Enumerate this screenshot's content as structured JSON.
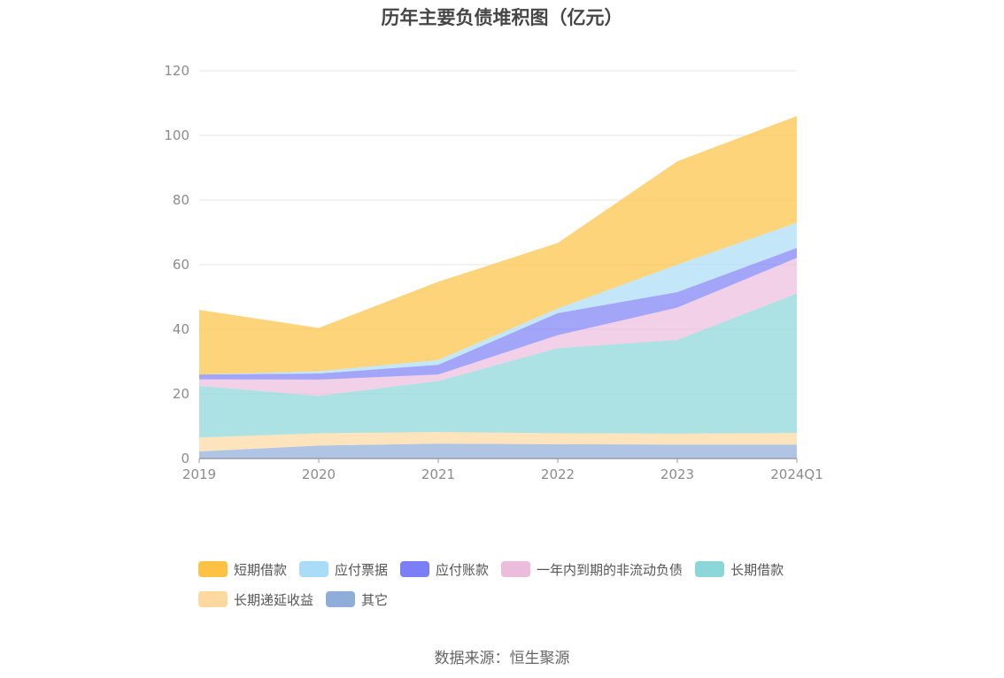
{
  "chart_data": {
    "type": "area",
    "stacked": true,
    "title": "历年主要负债堆积图（亿元）",
    "categories": [
      "2019",
      "2020",
      "2021",
      "2022",
      "2023",
      "2024Q1"
    ],
    "ylim": [
      0,
      120
    ],
    "yticks": [
      "0",
      "20",
      "40",
      "60",
      "80",
      "100",
      "120"
    ],
    "grid": true,
    "legend_position": "bottom",
    "series": [
      {
        "name": "其它",
        "color": "#8fadd9",
        "values": [
          2.2,
          4.0,
          4.6,
          4.4,
          4.3,
          4.3
        ]
      },
      {
        "name": "长期递延收益",
        "color": "#fdd9a0",
        "values": [
          4.3,
          3.8,
          3.6,
          3.4,
          3.4,
          3.6
        ]
      },
      {
        "name": "长期借款",
        "color": "#8ad6d8",
        "values": [
          16.0,
          11.6,
          15.8,
          26.4,
          29.0,
          43.2
        ]
      },
      {
        "name": "一年内到期的非流动负债",
        "color": "#ecbcdd",
        "values": [
          2.0,
          5.0,
          2.0,
          4.0,
          10.0,
          11.0
        ]
      },
      {
        "name": "应付账款",
        "color": "#7b7ff5",
        "values": [
          1.5,
          1.9,
          3.0,
          6.8,
          4.8,
          3.1
        ]
      },
      {
        "name": "应付票据",
        "color": "#a9ddf7",
        "values": [
          0.0,
          0.7,
          1.5,
          1.4,
          8.5,
          7.8
        ]
      },
      {
        "name": "短期借款",
        "color": "#fdc243",
        "values": [
          20.0,
          13.4,
          24.2,
          20.3,
          32.0,
          33.0
        ]
      }
    ]
  },
  "legend": {
    "items": [
      {
        "label": "短期借款",
        "color": "#fdc243"
      },
      {
        "label": "应付票据",
        "color": "#a9ddf7"
      },
      {
        "label": "应付账款",
        "color": "#7b7ff5"
      },
      {
        "label": "一年内到期的非流动负债",
        "color": "#ecbcdd"
      },
      {
        "label": "长期借款",
        "color": "#8ad6d8"
      },
      {
        "label": "长期递延收益",
        "color": "#fdd9a0"
      },
      {
        "label": "其它",
        "color": "#8fadd9"
      }
    ]
  },
  "source": "数据来源：恒生聚源"
}
